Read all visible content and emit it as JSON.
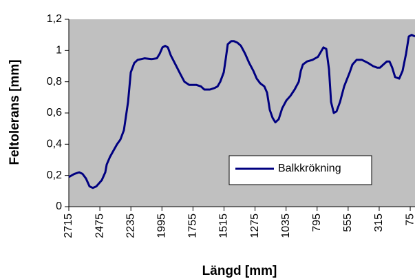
{
  "chart_data": {
    "type": "line",
    "x_label": "Längd [mm]",
    "y_label": "Feltolerans [mm]",
    "x": [
      2715,
      2672,
      2635,
      2609,
      2582,
      2555,
      2529,
      2502,
      2460,
      2433,
      2422,
      2396,
      2369,
      2342,
      2316,
      2289,
      2273,
      2257,
      2247,
      2236,
      2209,
      2183,
      2156,
      2130,
      2076,
      2034,
      2012,
      1991,
      1970,
      1949,
      1927,
      1890,
      1853,
      1821,
      1784,
      1730,
      1693,
      1667,
      1624,
      1587,
      1565,
      1544,
      1517,
      1501,
      1486,
      1459,
      1438,
      1411,
      1384,
      1352,
      1320,
      1288,
      1262,
      1235,
      1203,
      1182,
      1161,
      1140,
      1118,
      1092,
      1065,
      1033,
      1001,
      969,
      937,
      921,
      905,
      873,
      831,
      788,
      767,
      746,
      724,
      703,
      687,
      666,
      645,
      618,
      586,
      543,
      522,
      490,
      448,
      400,
      362,
      330,
      309,
      283,
      256,
      235,
      214,
      192,
      160,
      134,
      107,
      86,
      64,
      38
    ],
    "series": [
      {
        "name": "Balkkrökning",
        "color": "#000080",
        "values": [
          0.19,
          0.21,
          0.22,
          0.21,
          0.18,
          0.13,
          0.12,
          0.13,
          0.17,
          0.22,
          0.27,
          0.32,
          0.36,
          0.4,
          0.43,
          0.49,
          0.58,
          0.67,
          0.76,
          0.86,
          0.92,
          0.94,
          0.945,
          0.95,
          0.945,
          0.95,
          0.98,
          1.02,
          1.03,
          1.02,
          0.97,
          0.91,
          0.85,
          0.8,
          0.78,
          0.78,
          0.77,
          0.75,
          0.75,
          0.76,
          0.77,
          0.8,
          0.86,
          0.95,
          1.04,
          1.06,
          1.06,
          1.05,
          1.03,
          0.98,
          0.92,
          0.87,
          0.82,
          0.79,
          0.77,
          0.73,
          0.62,
          0.57,
          0.54,
          0.56,
          0.63,
          0.68,
          0.71,
          0.75,
          0.8,
          0.87,
          0.91,
          0.93,
          0.94,
          0.96,
          0.99,
          1.02,
          1.01,
          0.88,
          0.67,
          0.6,
          0.61,
          0.67,
          0.77,
          0.86,
          0.91,
          0.94,
          0.94,
          0.92,
          0.9,
          0.89,
          0.89,
          0.91,
          0.93,
          0.93,
          0.89,
          0.83,
          0.82,
          0.87,
          0.98,
          1.09,
          1.1,
          1.09
        ]
      }
    ],
    "xlim": [
      2715,
      38
    ],
    "xticks": [
      2715,
      2475,
      2235,
      1995,
      1755,
      1515,
      1275,
      1035,
      795,
      555,
      315,
      75
    ],
    "ylim": [
      0,
      1.2
    ],
    "yticks": [
      0,
      {
        "value": 0.2,
        "label": "0,2"
      },
      {
        "value": 0.4,
        "label": "0,4"
      },
      {
        "value": 0.6,
        "label": "0,6"
      },
      {
        "value": 0.8,
        "label": "0,8"
      },
      1,
      {
        "value": 1.2,
        "label": "1,2"
      }
    ],
    "plot_background": "#c0c0c0",
    "legend": "center-right"
  }
}
